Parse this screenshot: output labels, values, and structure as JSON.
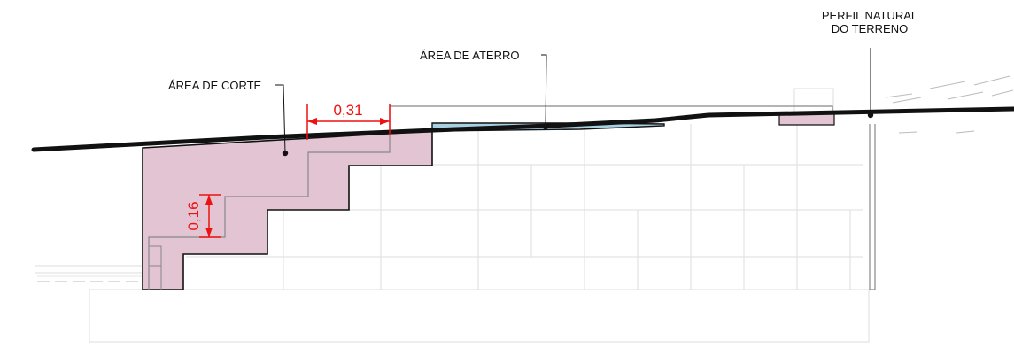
{
  "labels": {
    "cut_area": "ÁREA DE CORTE",
    "fill_area": "ÁREA DE ATERRO",
    "natural_profile_line1": "PERFIL NATURAL",
    "natural_profile_line2": "DO TERRENO"
  },
  "dimensions": {
    "step_width": "0,31",
    "step_height": "0,16"
  },
  "colors": {
    "cut_fill": "#e2c4d2",
    "fill_fill": "#a9cfe3",
    "dimension": "#ee1111",
    "terrain": "#111111",
    "guide": "#cfcfcf"
  }
}
